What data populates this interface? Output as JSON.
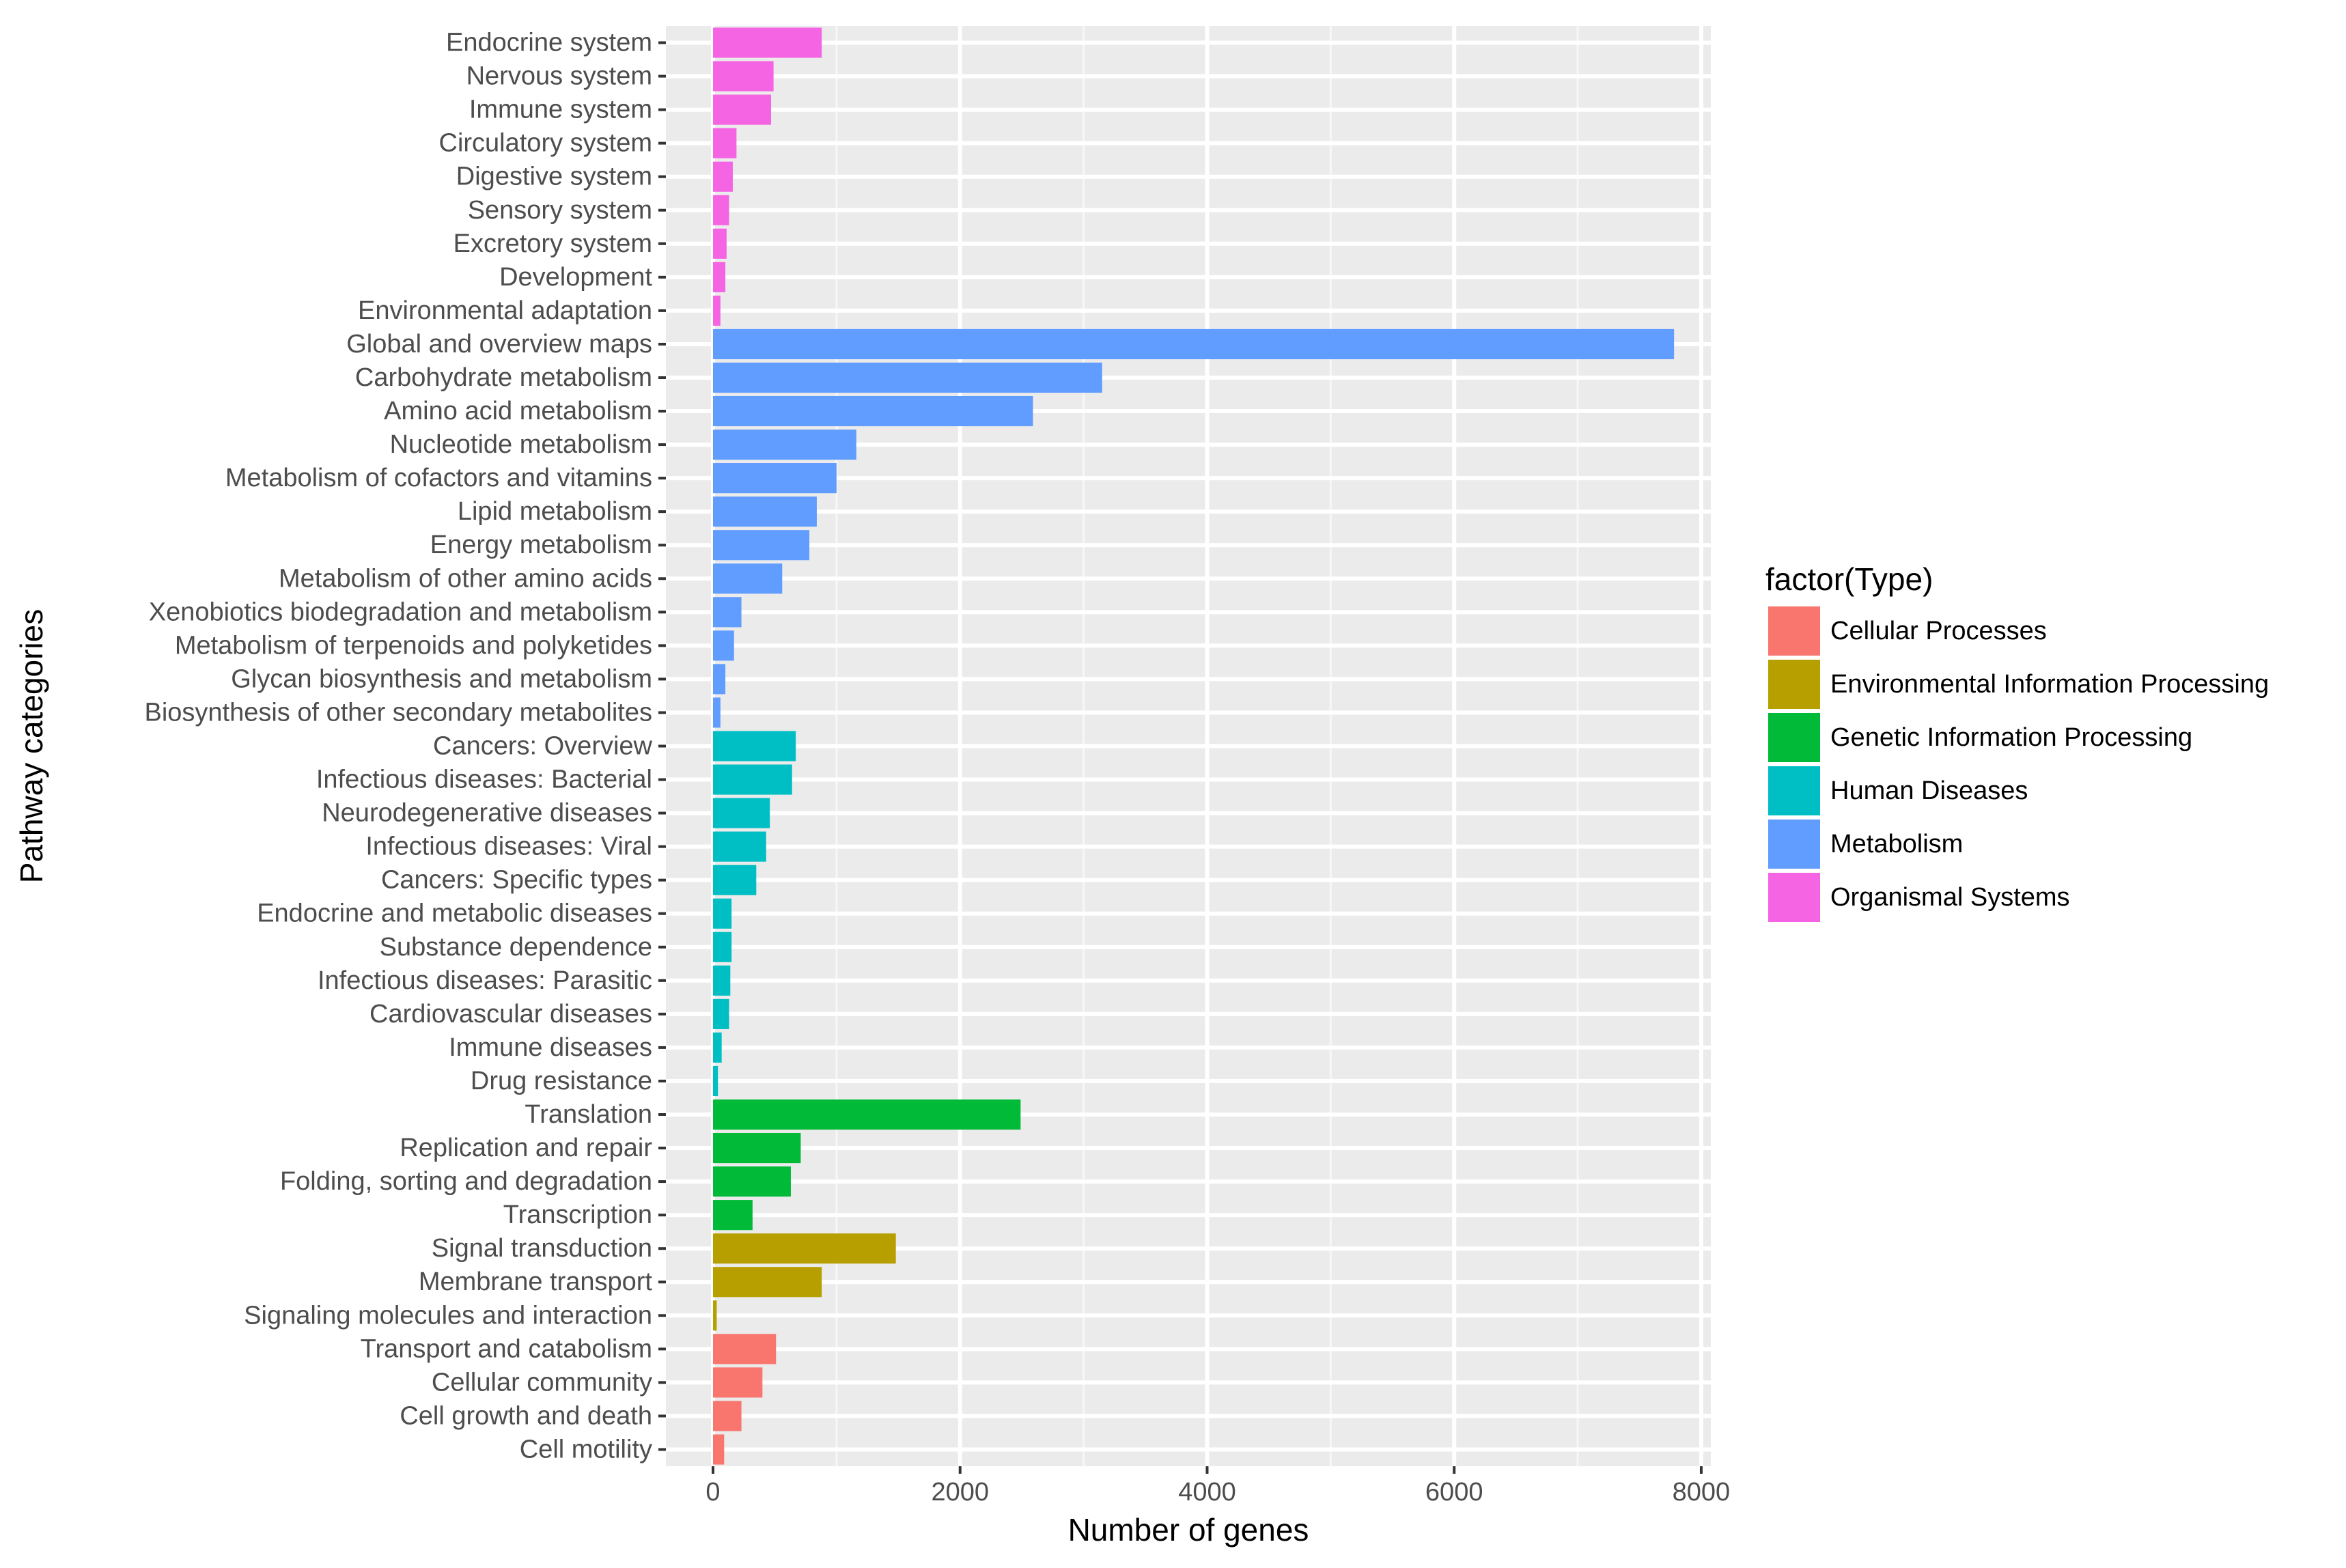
{
  "chart_data": {
    "type": "bar",
    "orientation": "horizontal",
    "title": "",
    "xlabel": "Number of genes",
    "ylabel": "Pathway categories",
    "xlim": [
      -400,
      8200
    ],
    "xticks": [
      0,
      2000,
      4000,
      6000,
      8000
    ],
    "xtick_labels": [
      "0",
      "2000",
      "4000",
      "6000",
      "8000"
    ],
    "grid": true,
    "legend": {
      "title": "factor(Type)",
      "position": "right",
      "entries": [
        {
          "name": "Cellular Processes",
          "color": "#F8766D"
        },
        {
          "name": "Environmental Information Processing",
          "color": "#B79F00"
        },
        {
          "name": "Genetic Information Processing",
          "color": "#00BA38"
        },
        {
          "name": "Human Diseases",
          "color": "#00BFC4"
        },
        {
          "name": "Metabolism",
          "color": "#619CFF"
        },
        {
          "name": "Organismal Systems",
          "color": "#F564E3"
        }
      ]
    },
    "bars": [
      {
        "category": "Endocrine system",
        "type": "Organismal Systems",
        "value": 880
      },
      {
        "category": "Nervous system",
        "type": "Organismal Systems",
        "value": 490
      },
      {
        "category": "Immune system",
        "type": "Organismal Systems",
        "value": 470
      },
      {
        "category": "Circulatory system",
        "type": "Organismal Systems",
        "value": 190
      },
      {
        "category": "Digestive system",
        "type": "Organismal Systems",
        "value": 160
      },
      {
        "category": "Sensory system",
        "type": "Organismal Systems",
        "value": 130
      },
      {
        "category": "Excretory system",
        "type": "Organismal Systems",
        "value": 110
      },
      {
        "category": "Development",
        "type": "Organismal Systems",
        "value": 100
      },
      {
        "category": "Environmental adaptation",
        "type": "Organismal Systems",
        "value": 60
      },
      {
        "category": "Global and overview maps",
        "type": "Metabolism",
        "value": 7780
      },
      {
        "category": "Carbohydrate metabolism",
        "type": "Metabolism",
        "value": 3150
      },
      {
        "category": "Amino acid metabolism",
        "type": "Metabolism",
        "value": 2590
      },
      {
        "category": "Nucleotide metabolism",
        "type": "Metabolism",
        "value": 1160
      },
      {
        "category": "Metabolism of cofactors and vitamins",
        "type": "Metabolism",
        "value": 1000
      },
      {
        "category": "Lipid metabolism",
        "type": "Metabolism",
        "value": 840
      },
      {
        "category": "Energy metabolism",
        "type": "Metabolism",
        "value": 780
      },
      {
        "category": "Metabolism of other amino acids",
        "type": "Metabolism",
        "value": 560
      },
      {
        "category": "Xenobiotics biodegradation and metabolism",
        "type": "Metabolism",
        "value": 230
      },
      {
        "category": "Metabolism of terpenoids and polyketides",
        "type": "Metabolism",
        "value": 170
      },
      {
        "category": "Glycan biosynthesis and metabolism",
        "type": "Metabolism",
        "value": 100
      },
      {
        "category": "Biosynthesis of other secondary metabolites",
        "type": "Metabolism",
        "value": 60
      },
      {
        "category": "Cancers: Overview",
        "type": "Human Diseases",
        "value": 670
      },
      {
        "category": "Infectious diseases: Bacterial",
        "type": "Human Diseases",
        "value": 640
      },
      {
        "category": "Neurodegenerative diseases",
        "type": "Human Diseases",
        "value": 460
      },
      {
        "category": "Infectious diseases: Viral",
        "type": "Human Diseases",
        "value": 430
      },
      {
        "category": "Cancers: Specific types",
        "type": "Human Diseases",
        "value": 350
      },
      {
        "category": "Endocrine and metabolic diseases",
        "type": "Human Diseases",
        "value": 150
      },
      {
        "category": "Substance dependence",
        "type": "Human Diseases",
        "value": 150
      },
      {
        "category": "Infectious diseases: Parasitic",
        "type": "Human Diseases",
        "value": 140
      },
      {
        "category": "Cardiovascular diseases",
        "type": "Human Diseases",
        "value": 130
      },
      {
        "category": "Immune diseases",
        "type": "Human Diseases",
        "value": 70
      },
      {
        "category": "Drug resistance",
        "type": "Human Diseases",
        "value": 40
      },
      {
        "category": "Translation",
        "type": "Genetic Information Processing",
        "value": 2490
      },
      {
        "category": "Replication and repair",
        "type": "Genetic Information Processing",
        "value": 710
      },
      {
        "category": "Folding, sorting and degradation",
        "type": "Genetic Information Processing",
        "value": 630
      },
      {
        "category": "Transcription",
        "type": "Genetic Information Processing",
        "value": 320
      },
      {
        "category": "Signal transduction",
        "type": "Environmental Information Processing",
        "value": 1480
      },
      {
        "category": "Membrane transport",
        "type": "Environmental Information Processing",
        "value": 880
      },
      {
        "category": "Signaling molecules and interaction",
        "type": "Environmental Information Processing",
        "value": 30
      },
      {
        "category": "Transport and catabolism",
        "type": "Cellular Processes",
        "value": 510
      },
      {
        "category": "Cellular community",
        "type": "Cellular Processes",
        "value": 400
      },
      {
        "category": "Cell growth and death",
        "type": "Cellular Processes",
        "value": 230
      },
      {
        "category": "Cell motility",
        "type": "Cellular Processes",
        "value": 90
      }
    ]
  }
}
